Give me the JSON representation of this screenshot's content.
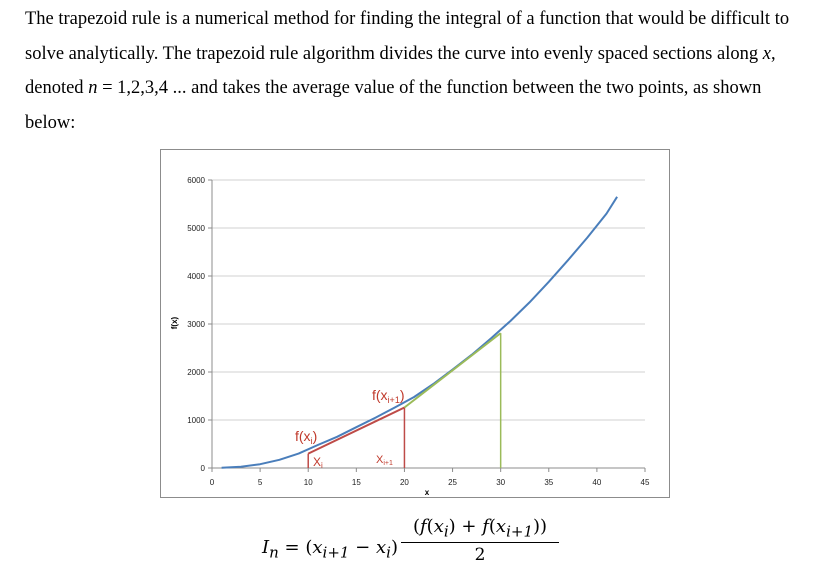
{
  "paragraph": {
    "part1": "The trapezoid rule is a numerical method for finding the integral of a function that would be difficult to solve analytically. The trapezoid rule algorithm divides the curve into evenly spaced sections along ",
    "var_x": "x",
    "part2": ", denoted ",
    "var_n": "n",
    "part3": " = 1,2,3,4 ... and takes the average value of the function between the two points, as shown below:"
  },
  "chart_data": {
    "type": "line",
    "xlabel": "x",
    "ylabel": "f(x)",
    "xlim": [
      0,
      45
    ],
    "ylim": [
      0,
      6000
    ],
    "xticks": [
      0,
      5,
      10,
      15,
      20,
      25,
      30,
      35,
      40,
      45
    ],
    "yticks": [
      0,
      1000,
      2000,
      3000,
      4000,
      5000,
      6000
    ],
    "grid": "horizontal",
    "series": [
      {
        "color": "#4a7ebb",
        "x": [
          1,
          3,
          5,
          7,
          9,
          11,
          13,
          15,
          17,
          19,
          21,
          23,
          25,
          27,
          29,
          31,
          33,
          35,
          37,
          39,
          41,
          42.1
        ],
        "y": [
          5,
          25,
          80,
          170,
          300,
          480,
          650,
          850,
          1050,
          1260,
          1480,
          1750,
          2050,
          2360,
          2700,
          3060,
          3450,
          3880,
          4330,
          4800,
          5300,
          5650
        ]
      }
    ],
    "secant_red": {
      "color": "#be4b48",
      "x": [
        10,
        20
      ],
      "y": [
        300,
        1260
      ]
    },
    "secant_green": {
      "color": "#9bbb59",
      "x": [
        20,
        30
      ],
      "y": [
        1260,
        2810
      ]
    },
    "annotations": {
      "fx_i": "f(x",
      "fx_i_sub": "i",
      "fx_i_close": ")",
      "fx_i1": "f(x",
      "fx_i1_sub": "i+1",
      "fx_i1_close": ")",
      "x_i": "X",
      "x_i_sub": "i",
      "x_i1": "X",
      "x_i1_sub": "i+1",
      "color": "#c0392b"
    }
  },
  "equation": {
    "lhs_I": "I",
    "lhs_n": "n",
    "lhs_eq": " = (",
    "lhs_xi1": "x",
    "lhs_i1": "i+1",
    "lhs_minus": " − ",
    "lhs_xi": "x",
    "lhs_i": "i",
    "lhs_close": ")",
    "num_open": "(",
    "num_f1": "f",
    "num_p1": "(",
    "num_x1": "x",
    "num_i1": "i",
    "num_c1": ")",
    "num_plus": " + ",
    "num_f2": "f",
    "num_p2": "(",
    "num_x2": "x",
    "num_i2": "i+1",
    "num_c2": "))",
    "den": "2"
  }
}
